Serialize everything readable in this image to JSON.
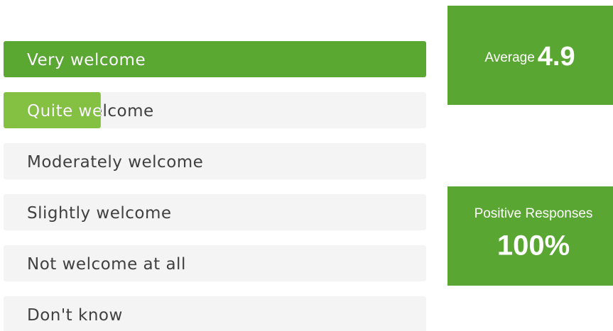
{
  "chart_data": {
    "type": "bar",
    "categories": [
      "Very welcome",
      "Quite welcome",
      "Moderately welcome",
      "Slightly welcome",
      "Not welcome at all",
      "Don't know"
    ],
    "values": [
      100,
      23,
      0,
      0,
      0,
      0
    ],
    "colors": [
      "#5aa832",
      "#84c041",
      "#5aa832",
      "#5aa832",
      "#5aa832",
      "#5aa832"
    ],
    "xlim": [
      0,
      100
    ],
    "stats": [
      {
        "label": "Average",
        "value": "4.9"
      },
      {
        "label": "Positive Responses",
        "value": "100%"
      }
    ],
    "stat_color": "#5aa632"
  }
}
